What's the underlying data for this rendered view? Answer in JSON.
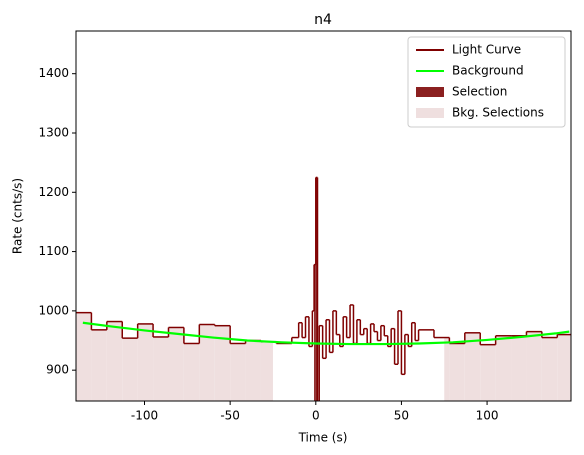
{
  "chart_data": {
    "type": "step",
    "title": "n4",
    "x_label": "Time (s)",
    "y_label": "Rate (cnts/s)",
    "xlim": [
      -140,
      149
    ],
    "ylim": [
      848,
      1472
    ],
    "xticks": [
      -100,
      -50,
      0,
      50,
      100
    ],
    "yticks": [
      900,
      1000,
      1100,
      1200,
      1300,
      1400
    ],
    "legend": "upper right",
    "light_curve": {
      "name": "Light Curve",
      "color": "#7f0000",
      "bins": [
        -140,
        -131,
        -122,
        -113,
        -104,
        -95,
        -86,
        -77,
        -68,
        -59,
        -50,
        -41,
        -32,
        -23,
        -14,
        -10,
        -8,
        -6,
        -4,
        -2,
        -1,
        0,
        1,
        2,
        4,
        6,
        8,
        10,
        12,
        14,
        16,
        18,
        20,
        22,
        24,
        26,
        28,
        30,
        32,
        34,
        36,
        38,
        40,
        42,
        44,
        46,
        48,
        50,
        52,
        54,
        56,
        58,
        60,
        69,
        78,
        87,
        96,
        105,
        114,
        123,
        132,
        141,
        149
      ],
      "values": [
        997,
        968,
        982,
        954,
        978,
        956,
        972,
        945,
        977,
        975,
        945,
        950,
        948,
        945,
        955,
        980,
        955,
        990,
        940,
        1000,
        1078,
        1225,
        830,
        975,
        920,
        985,
        930,
        1000,
        960,
        940,
        990,
        955,
        1010,
        945,
        985,
        960,
        970,
        945,
        978,
        965,
        950,
        975,
        958,
        940,
        970,
        910,
        1000,
        893,
        960,
        940,
        980,
        950,
        968,
        955,
        945,
        963,
        943,
        958,
        958,
        965,
        955,
        960
      ]
    },
    "background": {
      "name": "Background",
      "color": "#00ff00",
      "x": [
        -136,
        -120,
        -100,
        -80,
        -60,
        -40,
        -20,
        0,
        20,
        40,
        60,
        80,
        100,
        120,
        140,
        148
      ],
      "values": [
        980,
        974,
        967,
        961,
        955,
        950,
        947,
        945,
        944,
        944,
        945,
        947,
        951,
        956,
        962,
        965
      ]
    },
    "selection": {
      "name": "Selection",
      "color": "#8b2020",
      "range": [
        -1,
        2
      ]
    },
    "bkg_selections": {
      "name": "Bkg. Selections",
      "color": "#efdfdf",
      "ranges": [
        [
          -140,
          -25
        ],
        [
          75,
          149
        ]
      ]
    }
  }
}
